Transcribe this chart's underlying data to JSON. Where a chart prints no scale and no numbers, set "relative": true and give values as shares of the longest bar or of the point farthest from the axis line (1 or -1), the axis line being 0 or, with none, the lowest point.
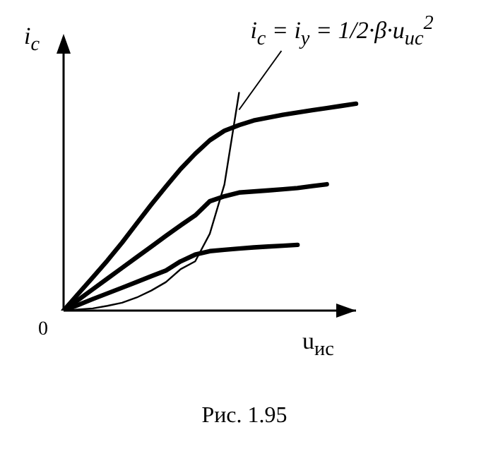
{
  "chart_data": {
    "type": "line",
    "relative": true,
    "xlabel": "u$_{ис}$",
    "ylabel": "i$_{c}$",
    "marker": "none",
    "line_style": "solid",
    "categories": [
      null,
      null,
      null,
      null,
      null,
      null,
      null,
      null,
      null,
      null,
      null,
      null,
      null,
      null,
      null,
      null,
      null,
      null,
      null,
      null,
      null
    ],
    "series": [
      {
        "color": "#000000",
        "values": [
          0,
          0.077,
          0.153,
          0.23,
          0.312,
          0.4,
          0.487,
          0.57,
          0.65,
          0.72,
          0.782,
          0.826,
          0.852,
          0.873,
          0.886,
          0.899,
          0.91,
          0.92,
          0.93,
          0.94,
          0.95
        ]
      },
      {
        "color": "#000000",
        "values": [
          0,
          0.049,
          0.098,
          0.147,
          0.196,
          0.245,
          0.294,
          0.343,
          0.391,
          0.437,
          0.502,
          0.525,
          0.542,
          0.547,
          0.552,
          0.557,
          0.563,
          0.572,
          0.58,
          null,
          null
        ]
      },
      {
        "color": "#000000",
        "values": [
          0,
          0.026,
          0.053,
          0.079,
          0.105,
          0.131,
          0.158,
          0.184,
          0.226,
          0.257,
          0.273,
          0.279,
          0.285,
          0.29,
          0.294,
          0.298,
          0.302,
          null,
          null,
          null,
          null
        ]
      },
      {
        "color": "#000000",
        "values": [
          0,
          0.005,
          0.01,
          0.022,
          0.036,
          0.06,
          0.092,
          0.131,
          0.19,
          0.226,
          0.353,
          0.579,
          1,
          null,
          null,
          null,
          null,
          null,
          null,
          null,
          null
        ]
      }
    ],
    "annotations": [
      "i$_{c}$ = i$_{y}$ = 1/2·β·u$_{ис}$$^{2}$",
      "0",
      "Рис. 1.95"
    ]
  }
}
